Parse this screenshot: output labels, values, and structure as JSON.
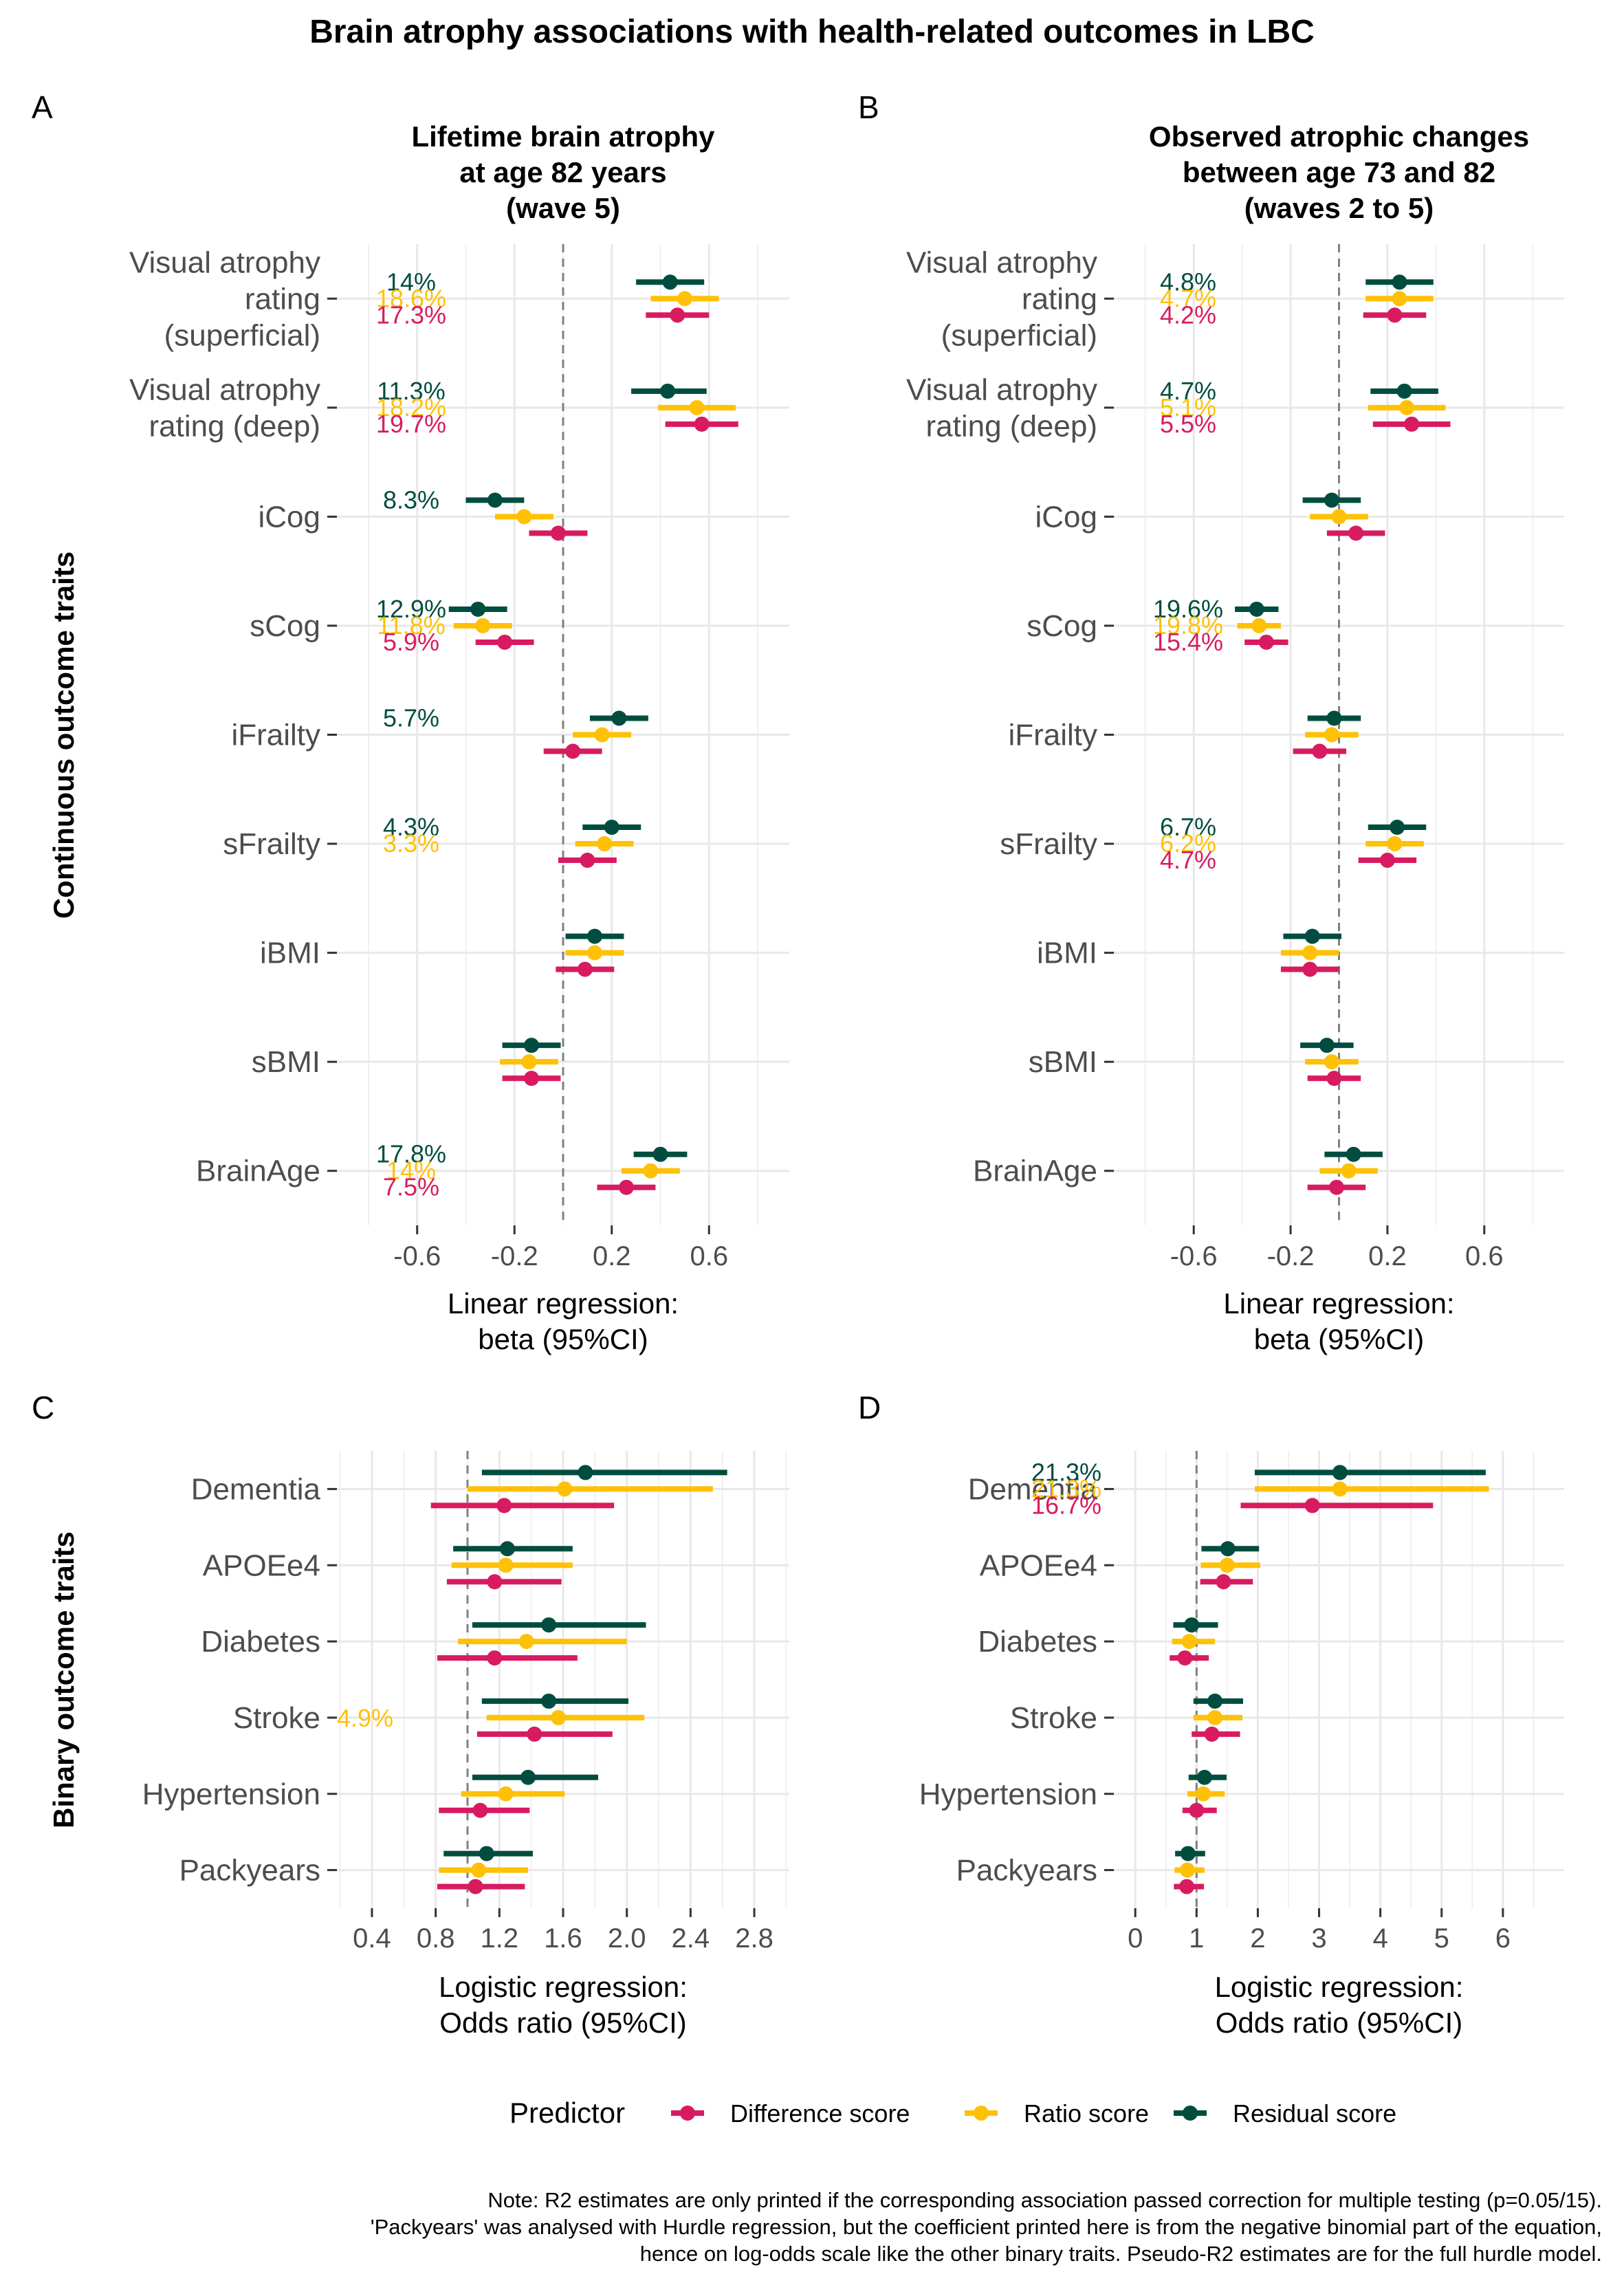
{
  "title": "Brain atrophy associations with health-related outcomes in LBC",
  "colors": {
    "Difference score": "#d81b60",
    "Ratio score": "#ffc107",
    "Residual score": "#004d40"
  },
  "legend": {
    "title": "Predictor",
    "entries": [
      "Difference score",
      "Ratio score",
      "Residual score"
    ]
  },
  "note": [
    "Note: R2 estimates are only printed if the corresponding association passed correction for multiple testing (p=0.05/15).",
    "'Packyears' was analysed with Hurdle regression, but the coefficient printed here is from the negative binomial part of the equation,",
    "hence on log-odds scale like the other binary traits. Pseudo-R2 estimates are for the full hurdle model."
  ],
  "row_labels": {
    "continuous": "Continuous outcome traits",
    "binary": "Binary outcome traits"
  },
  "chart_data": [
    {
      "panel": "A",
      "type": "scatter",
      "subtitle": [
        "Lifetime brain atrophy",
        "at age 82 years",
        "(wave 5)"
      ],
      "xlabel": [
        "Linear regression:",
        "beta (95%CI)"
      ],
      "ylabel": "Continuous outcome traits",
      "xlim": [
        -0.93,
        0.93
      ],
      "ref": 0,
      "ticks": [
        -0.6,
        -0.2,
        0.2,
        0.6
      ],
      "tick_labels": [
        "-0.6",
        "-0.2",
        "0.2",
        "0.6"
      ],
      "categories": [
        [
          "Visual atrophy",
          "rating",
          "(superficial)"
        ],
        [
          "Visual atrophy",
          "rating (deep)"
        ],
        [
          "iCog"
        ],
        [
          "sCog"
        ],
        [
          "iFrailty"
        ],
        [
          "sFrailty"
        ],
        [
          "iBMI"
        ],
        [
          "sBMI"
        ],
        [
          "BrainAge"
        ]
      ],
      "series": [
        {
          "name": "Residual score",
          "est": [
            0.44,
            0.43,
            -0.28,
            -0.35,
            0.23,
            0.2,
            0.13,
            -0.13,
            0.4
          ],
          "lo": [
            0.3,
            0.28,
            -0.4,
            -0.47,
            0.11,
            0.08,
            0.01,
            -0.25,
            0.29
          ],
          "hi": [
            0.58,
            0.59,
            -0.16,
            -0.23,
            0.35,
            0.32,
            0.25,
            -0.01,
            0.51
          ],
          "r2": [
            "14%",
            "11.3%",
            "8.3%",
            "12.9%",
            "5.7%",
            "4.3%",
            "",
            "",
            "17.8%"
          ]
        },
        {
          "name": "Ratio score",
          "est": [
            0.5,
            0.55,
            -0.16,
            -0.33,
            0.16,
            0.17,
            0.13,
            -0.14,
            0.36
          ],
          "lo": [
            0.36,
            0.39,
            -0.28,
            -0.45,
            0.04,
            0.05,
            0.01,
            -0.26,
            0.24
          ],
          "hi": [
            0.64,
            0.71,
            -0.04,
            -0.21,
            0.28,
            0.29,
            0.25,
            -0.02,
            0.48
          ],
          "r2": [
            "18.6%",
            "18.2%",
            "",
            "11.8%",
            "",
            "3.3%",
            "",
            "",
            "14%"
          ]
        },
        {
          "name": "Difference score",
          "est": [
            0.47,
            0.57,
            -0.02,
            -0.24,
            0.04,
            0.1,
            0.09,
            -0.13,
            0.26
          ],
          "lo": [
            0.34,
            0.42,
            -0.14,
            -0.36,
            -0.08,
            -0.02,
            -0.03,
            -0.25,
            0.14
          ],
          "hi": [
            0.6,
            0.72,
            0.1,
            -0.12,
            0.16,
            0.22,
            0.21,
            -0.01,
            0.38
          ],
          "r2": [
            "17.3%",
            "19.7%",
            "",
            "5.9%",
            "",
            "",
            "",
            "",
            "7.5%"
          ]
        }
      ]
    },
    {
      "panel": "B",
      "type": "scatter",
      "subtitle": [
        "Observed atrophic changes",
        "between age 73 and 82",
        "(waves 2 to 5)"
      ],
      "xlabel": [
        "Linear regression:",
        "beta (95%CI)"
      ],
      "ylabel": "",
      "xlim": [
        -0.93,
        0.93
      ],
      "ref": 0,
      "ticks": [
        -0.6,
        -0.2,
        0.2,
        0.6
      ],
      "tick_labels": [
        "-0.6",
        "-0.2",
        "0.2",
        "0.6"
      ],
      "categories": [
        [
          "Visual atrophy",
          "rating",
          "(superficial)"
        ],
        [
          "Visual atrophy",
          "rating (deep)"
        ],
        [
          "iCog"
        ],
        [
          "sCog"
        ],
        [
          "iFrailty"
        ],
        [
          "sFrailty"
        ],
        [
          "iBMI"
        ],
        [
          "sBMI"
        ],
        [
          "BrainAge"
        ]
      ],
      "series": [
        {
          "name": "Residual score",
          "est": [
            0.25,
            0.27,
            -0.03,
            -0.34,
            -0.02,
            0.24,
            -0.11,
            -0.05,
            0.06
          ],
          "lo": [
            0.11,
            0.13,
            -0.15,
            -0.43,
            -0.13,
            0.12,
            -0.23,
            -0.16,
            -0.06
          ],
          "hi": [
            0.39,
            0.41,
            0.09,
            -0.25,
            0.09,
            0.36,
            0.01,
            0.06,
            0.18
          ],
          "r2": [
            "4.8%",
            "4.7%",
            "",
            "19.6%",
            "",
            "6.7%",
            "",
            "",
            ""
          ]
        },
        {
          "name": "Ratio score",
          "est": [
            0.25,
            0.28,
            0.0,
            -0.33,
            -0.03,
            0.23,
            -0.12,
            -0.03,
            0.04
          ],
          "lo": [
            0.11,
            0.12,
            -0.12,
            -0.42,
            -0.14,
            0.11,
            -0.24,
            -0.14,
            -0.08
          ],
          "hi": [
            0.39,
            0.44,
            0.12,
            -0.24,
            0.08,
            0.35,
            0.0,
            0.08,
            0.16
          ],
          "r2": [
            "4.7%",
            "5.1%",
            "",
            "19.8%",
            "",
            "6.2%",
            "",
            "",
            ""
          ]
        },
        {
          "name": "Difference score",
          "est": [
            0.23,
            0.3,
            0.07,
            -0.3,
            -0.08,
            0.2,
            -0.12,
            -0.02,
            -0.01
          ],
          "lo": [
            0.1,
            0.14,
            -0.05,
            -0.39,
            -0.19,
            0.08,
            -0.24,
            -0.13,
            -0.13
          ],
          "hi": [
            0.36,
            0.46,
            0.19,
            -0.21,
            0.03,
            0.32,
            0.0,
            0.09,
            0.11
          ],
          "r2": [
            "4.2%",
            "5.5%",
            "",
            "15.4%",
            "",
            "4.7%",
            "",
            "",
            ""
          ]
        }
      ]
    },
    {
      "panel": "C",
      "type": "scatter",
      "subtitle": [],
      "xlabel": [
        "Logistic regression:",
        "Odds ratio (95%CI)"
      ],
      "ylabel": "Binary outcome traits",
      "xlim": [
        0.18,
        3.02
      ],
      "ref": 1,
      "ticks": [
        0.4,
        0.8,
        1.2,
        1.6,
        2.0,
        2.4,
        2.8
      ],
      "tick_labels": [
        "0.4",
        "0.8",
        "1.2",
        "1.6",
        "2.0",
        "2.4",
        "2.8"
      ],
      "categories": [
        [
          "Dementia"
        ],
        [
          "APOEe4"
        ],
        [
          "Diabetes"
        ],
        [
          "Stroke"
        ],
        [
          "Hypertension"
        ],
        [
          "Packyears"
        ]
      ],
      "series": [
        {
          "name": "Residual score",
          "est": [
            1.74,
            1.25,
            1.51,
            1.51,
            1.38,
            1.12
          ],
          "lo": [
            1.09,
            0.91,
            1.03,
            1.09,
            1.03,
            0.85
          ],
          "hi": [
            2.63,
            1.66,
            2.12,
            2.01,
            1.82,
            1.41
          ],
          "r2": [
            "",
            "",
            "",
            "",
            "",
            ""
          ]
        },
        {
          "name": "Ratio score",
          "est": [
            1.61,
            1.24,
            1.37,
            1.57,
            1.24,
            1.07
          ],
          "lo": [
            1.0,
            0.9,
            0.94,
            1.12,
            0.96,
            0.82
          ],
          "hi": [
            2.54,
            1.66,
            2.0,
            2.11,
            1.61,
            1.38
          ],
          "r2": [
            "",
            "",
            "",
            "4.9%",
            "",
            ""
          ]
        },
        {
          "name": "Difference score",
          "est": [
            1.23,
            1.17,
            1.17,
            1.42,
            1.08,
            1.05
          ],
          "lo": [
            0.77,
            0.87,
            0.81,
            1.06,
            0.82,
            0.81
          ],
          "hi": [
            1.92,
            1.59,
            1.69,
            1.91,
            1.39,
            1.36
          ],
          "r2": [
            "",
            "",
            "",
            "",
            "",
            ""
          ]
        }
      ]
    },
    {
      "panel": "D",
      "type": "scatter",
      "subtitle": [],
      "xlabel": [
        "Logistic regression:",
        "Odds ratio (95%CI)"
      ],
      "ylabel": "",
      "xlim": [
        -0.35,
        7.0
      ],
      "ref": 1,
      "ticks": [
        0,
        1,
        2,
        3,
        4,
        5,
        6
      ],
      "tick_labels": [
        "0",
        "1",
        "2",
        "3",
        "4",
        "5",
        "6"
      ],
      "categories": [
        [
          "Dementia"
        ],
        [
          "APOEe4"
        ],
        [
          "Diabetes"
        ],
        [
          "Stroke"
        ],
        [
          "Hypertension"
        ],
        [
          "Packyears"
        ]
      ],
      "series": [
        {
          "name": "Residual score",
          "est": [
            3.34,
            1.51,
            0.92,
            1.3,
            1.13,
            0.86
          ],
          "lo": [
            1.95,
            1.08,
            0.62,
            0.95,
            0.87,
            0.65
          ],
          "hi": [
            5.72,
            2.02,
            1.35,
            1.76,
            1.49,
            1.14
          ],
          "r2": [
            "21.3%",
            "",
            "",
            "",
            "",
            ""
          ]
        },
        {
          "name": "Ratio score",
          "est": [
            3.34,
            1.5,
            0.88,
            1.3,
            1.11,
            0.85
          ],
          "lo": [
            1.95,
            1.07,
            0.6,
            0.95,
            0.85,
            0.64
          ],
          "hi": [
            5.77,
            2.04,
            1.3,
            1.75,
            1.46,
            1.13
          ],
          "r2": [
            "21.3%",
            "",
            "",
            "",
            "",
            ""
          ]
        },
        {
          "name": "Difference score",
          "est": [
            2.89,
            1.44,
            0.81,
            1.25,
            1.0,
            0.84
          ],
          "lo": [
            1.72,
            1.06,
            0.56,
            0.92,
            0.77,
            0.63
          ],
          "hi": [
            4.86,
            1.92,
            1.2,
            1.71,
            1.33,
            1.12
          ],
          "r2": [
            "16.7%",
            "",
            "",
            "",
            "",
            ""
          ]
        }
      ]
    }
  ]
}
